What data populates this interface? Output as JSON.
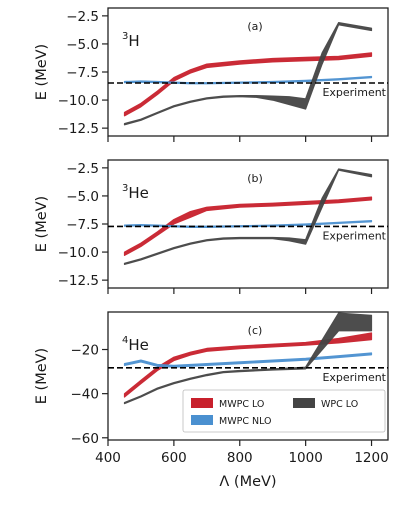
{
  "chart_data": [
    {
      "type": "line",
      "panel_label": "(a)",
      "nucleus": {
        "mass_number": "3",
        "symbol": "H"
      },
      "ylabel": "E (MeV)",
      "ylim": [
        -13.2,
        -1.8
      ],
      "yticks": [
        -2.5,
        -5.0,
        -7.5,
        -10.0,
        -12.5
      ],
      "ytick_labels": [
        "−2.5",
        "−5.0",
        "−7.5",
        "−10.0",
        "−12.5"
      ],
      "xlim": [
        400,
        1250
      ],
      "experiment": {
        "label": "Experiment",
        "value": -8.48
      },
      "series": [
        {
          "key": "mwpc_lo",
          "color": "#c8202c",
          "x": [
            450,
            500,
            550,
            600,
            650,
            700,
            800,
            900,
            1000,
            1100,
            1200
          ],
          "lower": [
            -11.4,
            -10.6,
            -9.5,
            -8.3,
            -7.6,
            -7.1,
            -6.8,
            -6.6,
            -6.5,
            -6.4,
            -6.1
          ],
          "upper": [
            -11.1,
            -10.3,
            -9.2,
            -8.0,
            -7.3,
            -6.8,
            -6.5,
            -6.3,
            -6.2,
            -6.1,
            -5.8
          ]
        },
        {
          "key": "mwpc_nlo",
          "color": "#4a90d0",
          "x": [
            450,
            500,
            550,
            600,
            650,
            700,
            800,
            900,
            1000,
            1100,
            1200
          ],
          "lower": [
            -8.45,
            -8.4,
            -8.45,
            -8.5,
            -8.55,
            -8.55,
            -8.5,
            -8.45,
            -8.35,
            -8.2,
            -8.0
          ],
          "upper": [
            -8.35,
            -8.3,
            -8.35,
            -8.4,
            -8.45,
            -8.45,
            -8.4,
            -8.35,
            -8.25,
            -8.1,
            -7.9
          ]
        },
        {
          "key": "wpc_lo",
          "color": "#444444",
          "x": [
            450,
            500,
            550,
            600,
            650,
            700,
            750,
            800,
            850,
            900,
            950,
            1000,
            1050,
            1100,
            1200
          ],
          "lower": [
            -12.2,
            -11.8,
            -11.2,
            -10.6,
            -10.2,
            -9.9,
            -9.75,
            -9.7,
            -9.75,
            -10.0,
            -10.4,
            -10.8,
            -6.8,
            -3.3,
            -3.8
          ],
          "upper": [
            -12.1,
            -11.7,
            -11.1,
            -10.5,
            -10.1,
            -9.8,
            -9.65,
            -9.6,
            -9.6,
            -9.65,
            -9.7,
            -9.9,
            -5.8,
            -3.1,
            -3.6
          ]
        }
      ]
    },
    {
      "type": "line",
      "panel_label": "(b)",
      "nucleus": {
        "mass_number": "3",
        "symbol": "He"
      },
      "ylabel": "E (MeV)",
      "ylim": [
        -13.2,
        -1.8
      ],
      "yticks": [
        -2.5,
        -5.0,
        -7.5,
        -10.0,
        -12.5
      ],
      "ytick_labels": [
        "−2.5",
        "−5.0",
        "−7.5",
        "−10.0",
        "−12.5"
      ],
      "xlim": [
        400,
        1250
      ],
      "experiment": {
        "label": "Experiment",
        "value": -7.72
      },
      "series": [
        {
          "key": "mwpc_lo",
          "color": "#c8202c",
          "x": [
            450,
            500,
            550,
            600,
            650,
            700,
            800,
            900,
            1000,
            1100,
            1200
          ],
          "lower": [
            -10.3,
            -9.5,
            -8.5,
            -7.5,
            -6.9,
            -6.3,
            -6.0,
            -5.9,
            -5.75,
            -5.6,
            -5.35
          ],
          "upper": [
            -10.0,
            -9.2,
            -8.2,
            -7.1,
            -6.4,
            -6.0,
            -5.75,
            -5.65,
            -5.5,
            -5.35,
            -5.1
          ]
        },
        {
          "key": "mwpc_nlo",
          "color": "#4a90d0",
          "x": [
            450,
            500,
            550,
            600,
            650,
            700,
            800,
            900,
            1000,
            1100,
            1200
          ],
          "lower": [
            -7.7,
            -7.65,
            -7.7,
            -7.75,
            -7.8,
            -7.8,
            -7.75,
            -7.7,
            -7.6,
            -7.45,
            -7.3
          ],
          "upper": [
            -7.6,
            -7.55,
            -7.6,
            -7.65,
            -7.7,
            -7.7,
            -7.65,
            -7.6,
            -7.5,
            -7.35,
            -7.2
          ]
        },
        {
          "key": "wpc_lo",
          "color": "#444444",
          "x": [
            450,
            500,
            550,
            600,
            650,
            700,
            750,
            800,
            850,
            900,
            950,
            1000,
            1050,
            1100,
            1200
          ],
          "lower": [
            -11.1,
            -10.7,
            -10.2,
            -9.7,
            -9.3,
            -9.0,
            -8.85,
            -8.8,
            -8.8,
            -8.8,
            -9.0,
            -9.3,
            -6.0,
            -2.7,
            -3.3
          ],
          "upper": [
            -11.0,
            -10.6,
            -10.1,
            -9.6,
            -9.2,
            -8.9,
            -8.75,
            -8.7,
            -8.7,
            -8.7,
            -8.75,
            -8.9,
            -5.2,
            -2.6,
            -3.1
          ]
        }
      ]
    },
    {
      "type": "line",
      "panel_label": "(c)",
      "nucleus": {
        "mass_number": "4",
        "symbol": "He"
      },
      "ylabel": "E (MeV)",
      "xlabel": "Λ (MeV)",
      "ylim": [
        -61,
        -3
      ],
      "yticks": [
        -20,
        -40,
        -60
      ],
      "ytick_labels": [
        "−20",
        "−40",
        "−60"
      ],
      "xlim": [
        400,
        1250
      ],
      "xticks": [
        400,
        600,
        800,
        1000,
        1200
      ],
      "xtick_labels": [
        "400",
        "600",
        "800",
        "1000",
        "1200"
      ],
      "experiment": {
        "label": "Experiment",
        "value": -28.3
      },
      "series": [
        {
          "key": "mwpc_lo",
          "color": "#c8202c",
          "x": [
            450,
            500,
            550,
            600,
            650,
            700,
            800,
            900,
            1000,
            1100,
            1200
          ],
          "lower": [
            -41.5,
            -35.5,
            -29.5,
            -25.0,
            -22.5,
            -20.8,
            -19.6,
            -18.8,
            -18.0,
            -17.0,
            -15.5
          ],
          "upper": [
            -40.0,
            -34.0,
            -28.0,
            -23.5,
            -21.2,
            -19.5,
            -18.4,
            -17.6,
            -16.8,
            -15.0,
            -12.5
          ]
        },
        {
          "key": "mwpc_nlo",
          "color": "#4a90d0",
          "x": [
            450,
            500,
            550,
            600,
            650,
            700,
            800,
            900,
            1000,
            1100,
            1200
          ],
          "lower": [
            -27.2,
            -25.6,
            -27.6,
            -28.0,
            -27.6,
            -27.2,
            -26.4,
            -25.6,
            -24.8,
            -23.6,
            -22.4
          ],
          "upper": [
            -26.4,
            -24.8,
            -26.8,
            -27.2,
            -26.8,
            -26.4,
            -25.6,
            -24.8,
            -24.0,
            -22.8,
            -21.6
          ]
        },
        {
          "key": "wpc_lo",
          "color": "#444444",
          "x": [
            450,
            500,
            550,
            600,
            650,
            700,
            750,
            800,
            900,
            1000,
            1100,
            1200
          ],
          "lower": [
            -44.5,
            -41.5,
            -38.0,
            -35.5,
            -33.5,
            -31.8,
            -30.5,
            -30.0,
            -29.3,
            -28.8,
            -11.5,
            -11.5
          ],
          "upper": [
            -44.0,
            -41.0,
            -37.5,
            -35.0,
            -33.0,
            -31.3,
            -30.0,
            -29.5,
            -28.8,
            -28.0,
            -3.5,
            -4.5
          ]
        }
      ]
    }
  ],
  "legend": {
    "location": "lower-right of panel (c)",
    "entries": [
      {
        "key": "mwpc_lo",
        "label": "MWPC LO",
        "color": "#c8202c"
      },
      {
        "key": "wpc_lo",
        "label": "WPC LO",
        "color": "#444444"
      },
      {
        "key": "mwpc_nlo",
        "label": "MWPC NLO",
        "color": "#4a90d0"
      }
    ]
  }
}
